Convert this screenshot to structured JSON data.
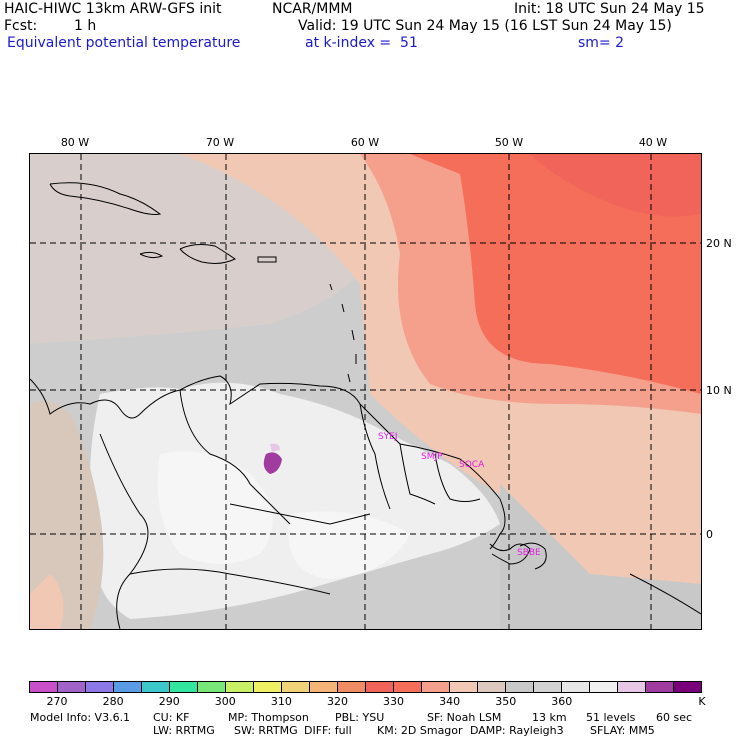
{
  "header": {
    "model_title": "HAIC-HIWC 13km ARW-GFS init",
    "org": "NCAR/MMM",
    "init": "Init: 18 UTC Sun 24 May 15",
    "fcst_label": "Fcst:",
    "fcst_value": "1 h",
    "valid": "Valid: 19 UTC Sun 24 May 15 (16 LST Sun 24 May 15)",
    "field": "Equivalent potential temperature",
    "level": "at k-index =  51",
    "smoothing": "sm= 2"
  },
  "map": {
    "lon_labels": [
      "80 W",
      "70 W",
      "60 W",
      "50 W",
      "40 W"
    ],
    "lat_labels": [
      "20 N",
      "10 N",
      "0"
    ],
    "stations": [
      "SYEJ",
      "SMJP",
      "SOCA",
      "SBBE"
    ]
  },
  "colorbar": {
    "colors": [
      "#c850c8",
      "#a064c8",
      "#8c78e6",
      "#5a9be6",
      "#3cc8c8",
      "#32e6a0",
      "#78e678",
      "#c8f064",
      "#f0f064",
      "#f0d278",
      "#f5b478",
      "#f08c64",
      "#f0645a",
      "#f56e5a",
      "#f5a08c",
      "#f0c8b4",
      "#dcc8be",
      "#c8c8c8",
      "#d2d2d2",
      "#e6e6e6",
      "#f0f0f0",
      "#e6c8e6",
      "#a03ca0",
      "#780078"
    ],
    "tick_labels": [
      "270",
      "280",
      "290",
      "300",
      "310",
      "320",
      "330",
      "340",
      "350",
      "360",
      "K"
    ]
  },
  "footer": {
    "line1": [
      "Model Info: V3.6.1",
      "CU: KF",
      "MP: Thompson",
      "PBL: YSU",
      "SF: Noah LSM",
      "13 km",
      "51 levels",
      "60 sec"
    ],
    "line2": [
      "LW: RRTMG",
      "SW: RRTMG",
      "DIFF: full",
      "KM: 2D Smagor",
      "DAMP: Rayleigh3",
      "SFLAY: MM5"
    ]
  }
}
